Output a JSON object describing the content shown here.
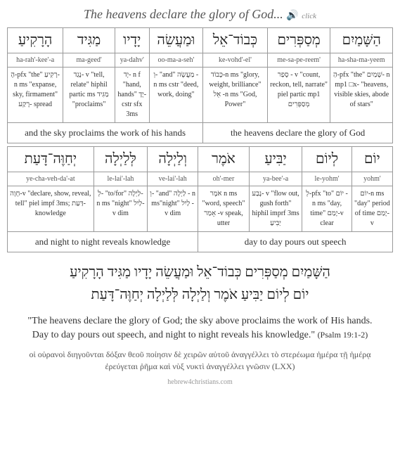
{
  "header": {
    "title": "The heavens declare the glory of God...",
    "audio_icon": "🔊",
    "click_label": "click"
  },
  "table1": {
    "words": [
      {
        "heb": "הָרָקִיעַ",
        "tr": "ha-rah'-kee'-a",
        "lex": "הָ-pfx \"the\" רָקִיעַ-n ms \"expanse, sky, firmament\" רָקַע- spread"
      },
      {
        "heb": "מַגִּיד",
        "tr": "ma-geed'",
        "lex": "נָגַד- v \"tell, relate\" hiphil partic ms מַגִּיד \"proclaims\""
      },
      {
        "heb": "יָדָיו",
        "tr": "ya-dahv'",
        "lex": "יָד- n f \"hand, hands\" יָדָ- cstr sfx 3ms"
      },
      {
        "heb": "וּמַעֲשֵׂה",
        "tr": "oo-ma-a-seh'",
        "lex": "וְ- \"and\" מַעֲשֶׂה - n ms cstr \"deed, work, doing\""
      },
      {
        "heb": "כְּבוֹד־אֵל",
        "tr": "ke-vohd'-el'",
        "lex": "כָּבוֹד-n ms \"glory, weight, brilliance\" אֵל -n ms \"God, Power\""
      },
      {
        "heb": "מְסַפְּרִים",
        "tr": "me-sa-pe-reem'",
        "lex": "סָפַר - v \"count, reckon, tell, narrate\" piel partic mp1 מְסַפְּרִים"
      },
      {
        "heb": "הַשָּׁמַיִם",
        "tr": "ha-sha-ma-yeem",
        "lex": "הַ-pfx \"the\" שָׁמַיִם- n mp1 □x- \"heavens, visible skies, abode of stars\""
      }
    ],
    "trans_left": "and the sky proclaims the work of his hands",
    "trans_right": "the heavens declare the glory of God"
  },
  "table2": {
    "words": [
      {
        "heb": "יְחַוֶּה־דָּעַת",
        "tr": "ye-cha-veh-da'-at",
        "lex": "חָוָה-v \"declare, show, reveal, tell\" piel impf 3ms; דַּעַת- knowledge"
      },
      {
        "heb": "לְּלַיְלָה",
        "tr": "le-lai'-lah",
        "lex": "לְ- \"to/for\" לַיְלָה-n ms \"night\" לַיִל- v dim"
      },
      {
        "heb": "וְלַיְלָה",
        "tr": "ve-lai'-lah",
        "lex": "וְ- \"and\" לַיְלָה - n ms\"night\" לַיִל - v dim"
      },
      {
        "heb": "אֹמֶר",
        "tr": "oh'-mer",
        "lex": "אֹמֶר n ms \"word, speech\" אָמַר -v speak, utter"
      },
      {
        "heb": "יַבִּיעַ",
        "tr": "ya-bee'-a",
        "lex": "נָבַע- v \"flow out, gush forth\" hiphil imprf 3ms יַבִּיעַ"
      },
      {
        "heb": "לְיוֹם",
        "tr": "le-yohm'",
        "lex": "לְ-pfx \"to\" יוֹם - n ms \"day, time\" יָמַם-v clear"
      },
      {
        "heb": "יוֹם",
        "tr": "yohm'",
        "lex": "יוֹם-n ms \"day\" period of time יָמַם-v"
      }
    ],
    "trans_left": "and night to night reveals knowledge",
    "trans_right": "day to day pours out speech"
  },
  "full_hebrew": {
    "line1": "הַשָּׁמַיִם מְסַפְּרִים כְּבוֹד־אֵל וּמַעֲשֵׂה יָדָיו מַגִּיד הָרָקִיעַ",
    "line2": "יוֹם לְיוֹם יַבִּיעַ אֹמֶר וְלַיְלָה לְּלַיְלָה יְחַוֶּה־דָּעַת"
  },
  "english": {
    "quote": "\"The heavens declare the glory of God; the sky above proclaims the work of His hands. Day to day pours out speech, and night to night reveals his knowledge.\"",
    "citation": "(Psalm 19:1-2)"
  },
  "greek": "οἱ οὐρανοὶ διηγοῦνται δόξαν θεοῦ ποίησιν δὲ χειρῶν αὐτοῦ ἀναγγέλλει τὸ στερέωμα ἡμέρα τῇ ἡμέρᾳ ἐρεύγεται ῥῆμα καὶ νὺξ νυκτὶ ἀναγγέλλει γνῶσιν (LXX)",
  "footer": "hebrew4christians.com"
}
